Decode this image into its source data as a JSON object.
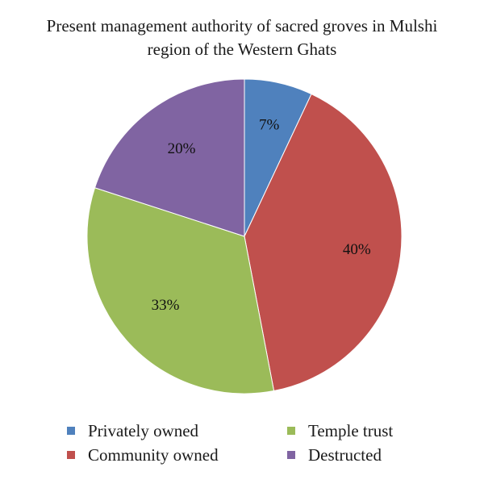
{
  "chart_data": {
    "type": "pie",
    "title_lines": [
      "Present management authority of sacred groves in Mulshi",
      "region of the Western Ghats"
    ],
    "slices": [
      {
        "name": "Privately owned",
        "value": 7,
        "label": "7%",
        "color": "#4f81bd"
      },
      {
        "name": "Community owned",
        "value": 40,
        "label": "40%",
        "color": "#c0504d"
      },
      {
        "name": "Temple trust",
        "value": 33,
        "label": "33%",
        "color": "#9bbb59"
      },
      {
        "name": "Destructed",
        "value": 20,
        "label": "20%",
        "color": "#8064a2"
      }
    ],
    "legend": {
      "placement": "bottom",
      "items": [
        "Privately owned",
        "Temple trust",
        "Community owned",
        "Destructed"
      ]
    }
  }
}
